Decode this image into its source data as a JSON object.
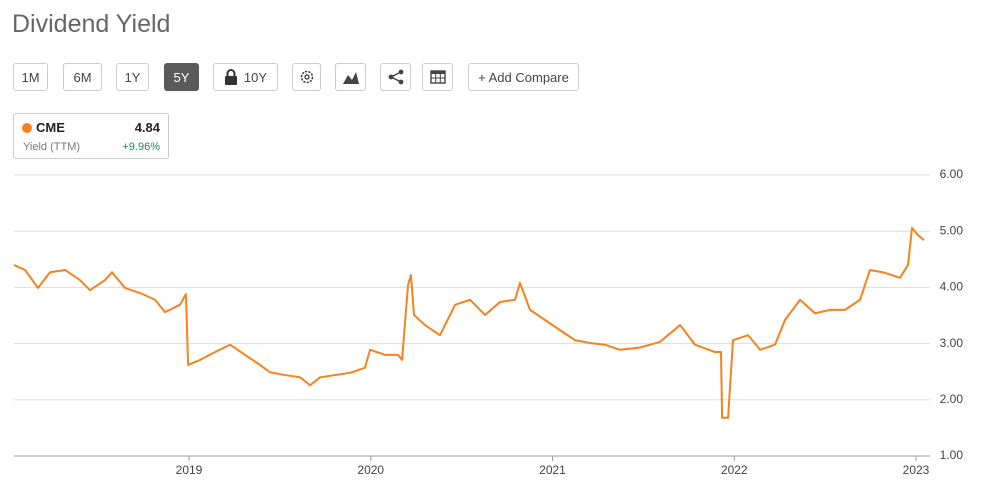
{
  "toolbar": {
    "buttons": [
      "1M",
      "6M",
      "1Y",
      "5Y",
      "10Y",
      "+ Add Compare"
    ],
    "selected": "5Y"
  },
  "legend_card": {
    "value": 4.84,
    "label": "Yield (TTM)",
    "change": "+9.96%"
  },
  "chart_data": {
    "type": "line",
    "title": "Dividend Yield",
    "x": [
      2018.037,
      2018.098,
      2018.169,
      2018.235,
      2018.318,
      2018.4,
      2018.455,
      2018.538,
      2018.576,
      2018.648,
      2018.73,
      2018.813,
      2018.868,
      2018.95,
      2018.983,
      2018.995,
      2019.061,
      2019.143,
      2019.226,
      2019.308,
      2019.391,
      2019.446,
      2019.528,
      2019.611,
      2019.666,
      2019.721,
      2019.803,
      2019.886,
      2019.968,
      2019.996,
      2020.078,
      2020.15,
      2020.172,
      2020.205,
      2020.221,
      2020.238,
      2020.298,
      2020.381,
      2020.464,
      2020.546,
      2020.629,
      2020.711,
      2020.794,
      2020.821,
      2020.876,
      2020.959,
      2021.041,
      2021.124,
      2021.206,
      2021.289,
      2021.371,
      2021.481,
      2021.591,
      2021.702,
      2021.784,
      2021.894,
      2021.927,
      2021.933,
      2021.966,
      2021.993,
      2022.076,
      2022.142,
      2022.224,
      2022.279,
      2022.362,
      2022.444,
      2022.527,
      2022.609,
      2022.692,
      2022.747,
      2022.829,
      2022.912,
      2022.956,
      2022.978,
      2023.011,
      2023.044
    ],
    "series": [
      {
        "name": "CME",
        "color": "#f5821f",
        "values": [
          4.4,
          4.31,
          3.99,
          4.27,
          4.31,
          4.13,
          3.95,
          4.13,
          4.27,
          3.99,
          3.9,
          3.78,
          3.56,
          3.69,
          3.88,
          2.62,
          2.71,
          2.85,
          2.98,
          2.8,
          2.62,
          2.49,
          2.44,
          2.4,
          2.26,
          2.4,
          2.44,
          2.48,
          2.57,
          2.89,
          2.8,
          2.8,
          2.71,
          4.04,
          4.22,
          3.51,
          3.33,
          3.15,
          3.69,
          3.78,
          3.51,
          3.74,
          3.78,
          4.08,
          3.6,
          3.42,
          3.24,
          3.06,
          3.01,
          2.98,
          2.89,
          2.93,
          3.03,
          3.33,
          2.98,
          2.85,
          2.85,
          1.68,
          1.68,
          3.06,
          3.15,
          2.89,
          2.98,
          3.42,
          3.78,
          3.54,
          3.6,
          3.6,
          3.78,
          4.31,
          4.26,
          4.17,
          4.4,
          5.06,
          4.93,
          4.84
        ]
      }
    ],
    "xlim": [
      2018.037,
      2023.077
    ],
    "xticks": [
      2019,
      2020,
      2021,
      2022,
      2023
    ],
    "ylim": [
      1,
      6
    ],
    "yticks": [
      {
        "value": 1,
        "label": "1.00"
      },
      {
        "value": 2,
        "label": "2.00"
      },
      {
        "value": 3,
        "label": "3.00"
      },
      {
        "value": 4,
        "label": "4.00"
      },
      {
        "value": 5,
        "label": "5.00"
      },
      {
        "value": 6,
        "label": "6.00"
      }
    ],
    "grid": true
  }
}
